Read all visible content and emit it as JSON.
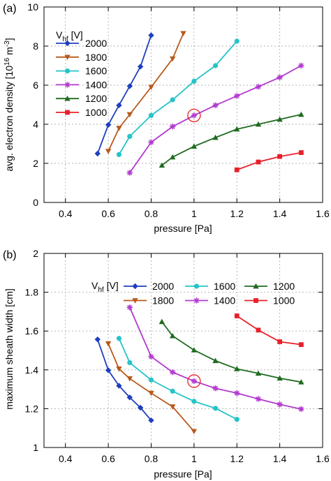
{
  "chart_data": [
    {
      "type": "line",
      "panel_label": "(a)",
      "xlabel": "pressure [Pa]",
      "ylabel": "avg. electron density  [10^16 m^-3]",
      "ylabel_parts": {
        "main": "avg. electron density  [10",
        "exp1": "16",
        "mid": " m",
        "exp2": "-3",
        "end": "]"
      },
      "xlim": [
        0.3,
        1.6
      ],
      "ylim": [
        0,
        10
      ],
      "xticks": [
        0.4,
        0.6,
        0.8,
        1,
        1.2,
        1.4,
        1.6
      ],
      "xtick_labels": [
        "0.4",
        "0.6",
        "0.8",
        "1",
        "1.2",
        "1.4",
        "1.6"
      ],
      "yticks": [
        0,
        2,
        4,
        6,
        8,
        10
      ],
      "ytick_labels": [
        "0",
        "2",
        "4",
        "6",
        "8",
        "10"
      ],
      "grid": true,
      "legend_title": "V",
      "legend_title_sub": "hf",
      "legend_title_unit": " [V]",
      "legend_position": "top-left, single column",
      "highlight": {
        "x": 1.0,
        "y": 4.45,
        "color": "#e8202a"
      },
      "series": [
        {
          "name": "2000",
          "color": "#1f3fbf",
          "marker": "diamond",
          "x": [
            0.55,
            0.6,
            0.65,
            0.7,
            0.75,
            0.8
          ],
          "y": [
            2.5,
            3.97,
            4.97,
            5.95,
            6.95,
            8.55
          ]
        },
        {
          "name": "1800",
          "color": "#b85a1c",
          "marker": "triangle-down",
          "x": [
            0.6,
            0.65,
            0.7,
            0.8,
            0.9,
            0.95
          ],
          "y": [
            2.62,
            3.8,
            4.5,
            5.9,
            7.35,
            8.65
          ]
        },
        {
          "name": "1600",
          "color": "#25c4c8",
          "marker": "circle",
          "x": [
            0.65,
            0.7,
            0.8,
            0.9,
            1.0,
            1.1,
            1.2
          ],
          "y": [
            2.45,
            3.38,
            4.45,
            5.25,
            6.2,
            7.0,
            8.25
          ]
        },
        {
          "name": "1400",
          "color": "#b23ad0",
          "marker": "star",
          "x": [
            0.7,
            0.8,
            0.9,
            1.0,
            1.1,
            1.2,
            1.3,
            1.4,
            1.5
          ],
          "y": [
            1.52,
            3.08,
            3.88,
            4.45,
            4.97,
            5.45,
            5.92,
            6.4,
            7.0
          ]
        },
        {
          "name": "1200",
          "color": "#1f6b1f",
          "marker": "triangle-up",
          "x": [
            0.85,
            0.9,
            1.0,
            1.1,
            1.2,
            1.3,
            1.4,
            1.5
          ],
          "y": [
            1.9,
            2.32,
            2.87,
            3.32,
            3.75,
            4.0,
            4.25,
            4.5
          ]
        },
        {
          "name": "1000",
          "color": "#e8202a",
          "marker": "square",
          "x": [
            1.2,
            1.3,
            1.4,
            1.5
          ],
          "y": [
            1.67,
            2.07,
            2.35,
            2.55
          ]
        }
      ]
    },
    {
      "type": "line",
      "panel_label": "(b)",
      "xlabel": "pressure [Pa]",
      "ylabel": "maximum sheath width  [cm]",
      "xlim": [
        0.3,
        1.6
      ],
      "ylim": [
        1,
        2
      ],
      "xticks": [
        0.4,
        0.6,
        0.8,
        1,
        1.2,
        1.4,
        1.6
      ],
      "xtick_labels": [
        "0.4",
        "0.6",
        "0.8",
        "1",
        "1.2",
        "1.4",
        "1.6"
      ],
      "yticks": [
        1,
        1.2,
        1.4,
        1.6,
        1.8,
        2
      ],
      "ytick_labels": [
        "1",
        "1.2",
        "1.4",
        "1.6",
        "1.8",
        "2"
      ],
      "grid": true,
      "legend_title": "V",
      "legend_title_sub": "hf",
      "legend_title_unit": " [V]",
      "legend_position": "top-right, three columns",
      "highlight": {
        "x": 1.0,
        "y": 1.342,
        "color": "#e8202a"
      },
      "series": [
        {
          "name": "2000",
          "color": "#1f3fbf",
          "marker": "diamond",
          "x": [
            0.55,
            0.6,
            0.65,
            0.7,
            0.75,
            0.8
          ],
          "y": [
            1.557,
            1.398,
            1.318,
            1.258,
            1.205,
            1.14
          ]
        },
        {
          "name": "1800",
          "color": "#b85a1c",
          "marker": "triangle-down",
          "x": [
            0.6,
            0.65,
            0.7,
            0.8,
            0.9,
            1.0
          ],
          "y": [
            1.535,
            1.405,
            1.355,
            1.28,
            1.21,
            1.083
          ]
        },
        {
          "name": "1600",
          "color": "#25c4c8",
          "marker": "circle",
          "x": [
            0.65,
            0.7,
            0.8,
            0.9,
            1.0,
            1.1,
            1.2
          ],
          "y": [
            1.562,
            1.437,
            1.348,
            1.29,
            1.238,
            1.202,
            1.145
          ]
        },
        {
          "name": "1400",
          "color": "#b23ad0",
          "marker": "star",
          "x": [
            0.7,
            0.8,
            0.9,
            1.0,
            1.1,
            1.2,
            1.3,
            1.4,
            1.5
          ],
          "y": [
            1.722,
            1.468,
            1.388,
            1.342,
            1.305,
            1.28,
            1.25,
            1.222,
            1.198
          ]
        },
        {
          "name": "1200",
          "color": "#1f6b1f",
          "marker": "triangle-up",
          "x": [
            0.85,
            0.9,
            1.0,
            1.1,
            1.2,
            1.3,
            1.4,
            1.5
          ],
          "y": [
            1.648,
            1.575,
            1.502,
            1.447,
            1.405,
            1.382,
            1.357,
            1.337
          ]
        },
        {
          "name": "1000",
          "color": "#e8202a",
          "marker": "square",
          "x": [
            1.2,
            1.3,
            1.4,
            1.5
          ],
          "y": [
            1.678,
            1.605,
            1.545,
            1.53
          ]
        }
      ]
    }
  ]
}
